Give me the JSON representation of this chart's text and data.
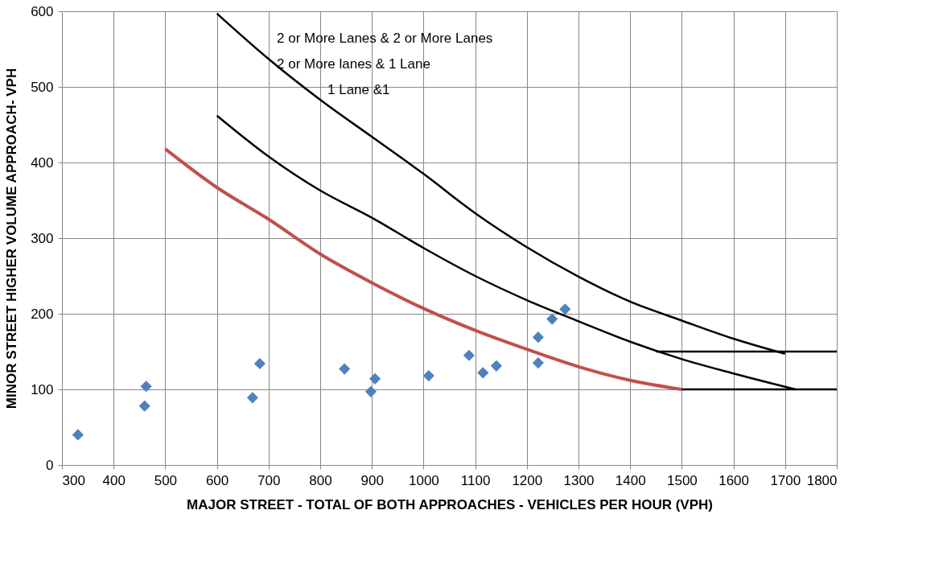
{
  "chart_data": {
    "type": "line",
    "xlabel": "MAJOR STREET - TOTAL OF BOTH APPROACHES - VEHICLES PER HOUR (VPH)",
    "ylabel": "MINOR STREET HIGHER VOLUME APPROACH- VPH",
    "xlim": [
      300,
      1800
    ],
    "ylim": [
      0,
      600
    ],
    "xticks": [
      300,
      400,
      500,
      600,
      700,
      800,
      900,
      1000,
      1100,
      1200,
      1300,
      1400,
      1500,
      1600,
      1700,
      1800
    ],
    "yticks": [
      0,
      100,
      200,
      300,
      400,
      500,
      600
    ],
    "grid": true,
    "series": [
      {
        "color": "#000000",
        "x": [
          600,
          700,
          800,
          900,
          1000,
          1100,
          1200,
          1300,
          1400,
          1500,
          1600,
          1700
        ],
        "values": [
          597,
          537,
          483,
          434,
          385,
          333,
          288,
          249,
          216,
          191,
          167,
          147
        ]
      },
      {
        "color": "#000000",
        "x": [
          600,
          700,
          800,
          900,
          1000,
          1100,
          1200,
          1300,
          1400,
          1500,
          1600,
          1720
        ],
        "values": [
          462,
          408,
          363,
          327,
          287,
          250,
          218,
          190,
          163,
          140,
          121,
          100
        ]
      },
      {
        "color": "#c0504d",
        "x": [
          500,
          600,
          700,
          800,
          900,
          1000,
          1100,
          1200,
          1300,
          1400,
          1500
        ],
        "values": [
          418,
          367,
          325,
          279,
          241,
          207,
          178,
          153,
          130,
          112,
          100
        ]
      },
      {
        "color": "#000000",
        "x": [
          1450,
          1800
        ],
        "values": [
          150,
          150
        ]
      },
      {
        "color": "#000000",
        "x": [
          1500,
          1800
        ],
        "values": [
          100,
          100
        ]
      },
      {
        "type": "scatter",
        "color": "#4f81bd",
        "marker": "diamond",
        "x": [
          331,
          460,
          463,
          669,
          683,
          847,
          898,
          906,
          1010,
          1088,
          1115,
          1141,
          1222,
          1222,
          1249,
          1274
        ],
        "values": [
          40,
          78,
          104,
          89,
          134,
          127,
          97,
          114,
          118,
          145,
          122,
          131,
          135,
          169,
          193,
          206
        ]
      }
    ],
    "annotations": [
      "2 or More Lanes & 2 or More Lanes",
      "2 or More lanes & 1 Lane",
      "1 Lane &1"
    ]
  }
}
